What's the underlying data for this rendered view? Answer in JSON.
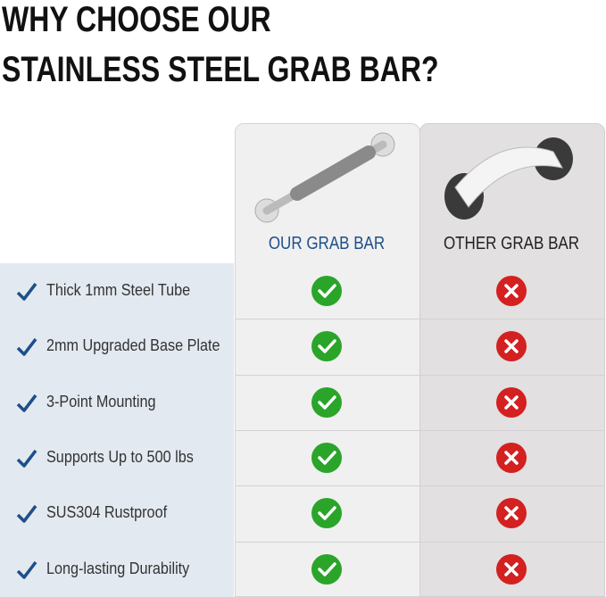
{
  "header": {
    "title": [
      "WHY CHOOSE OUR",
      "STAINLESS STEEL GRAB BAR?"
    ]
  },
  "table": {
    "columns": [
      "OUR GRAB BAR",
      "OTHER GRAB BAR"
    ],
    "rows": [
      "Thick 1mm Steel Tube",
      "2mm Upgraded Base Plate",
      "3-Point Mounting",
      "Supports Up to 500 lbs",
      "SUS304 Rustproof",
      "Long-lasting Durability"
    ]
  }
}
